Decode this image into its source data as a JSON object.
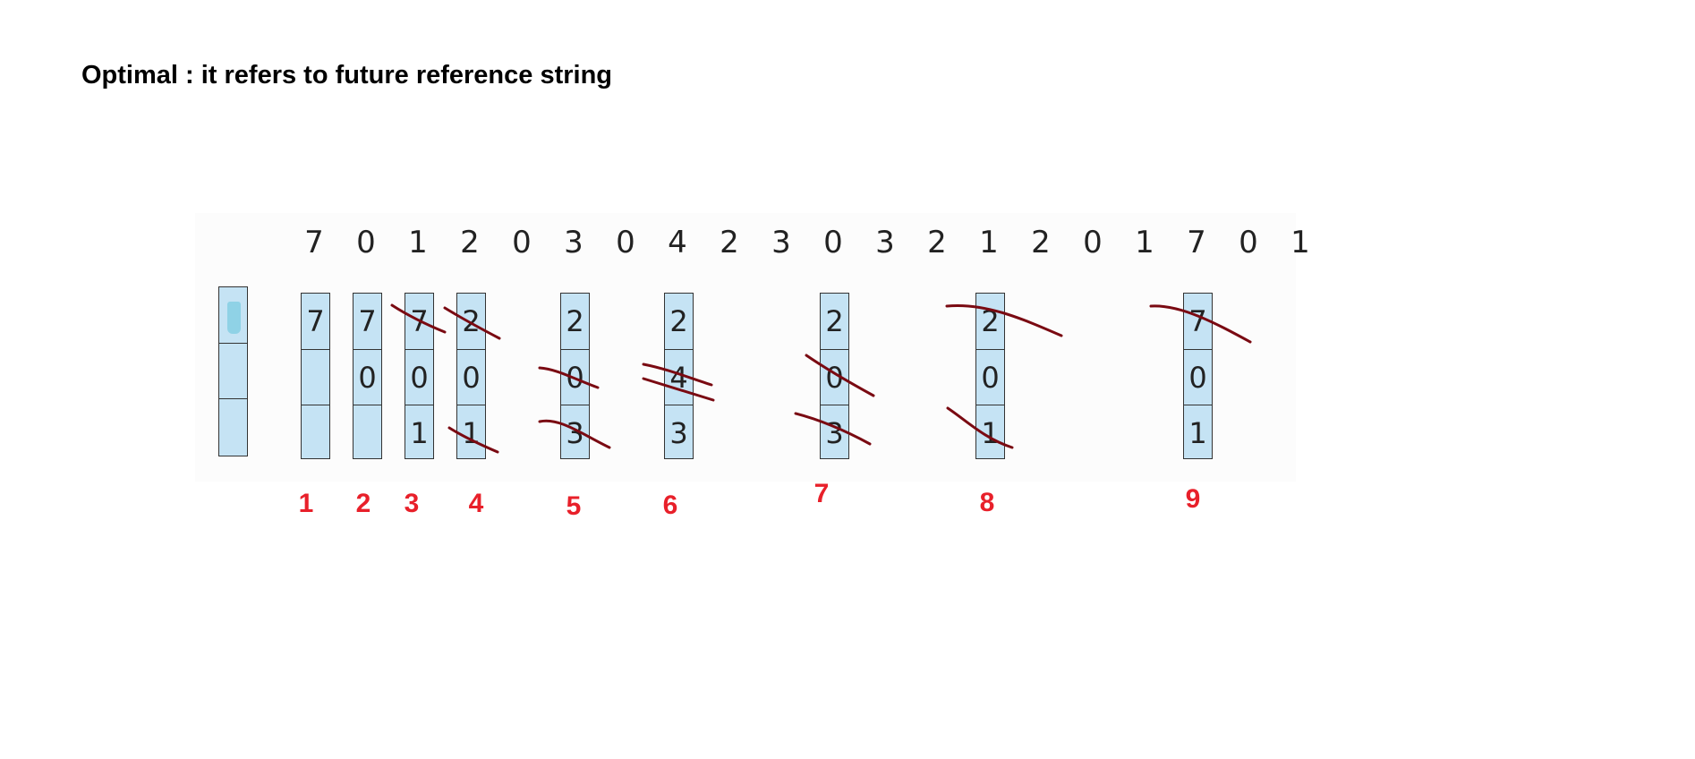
{
  "title": "Optimal : it refers to future reference string",
  "reference_string": [
    "7",
    "0",
    "1",
    "2",
    "0",
    "3",
    "0",
    "4",
    "2",
    "3",
    "0",
    "3",
    "2",
    "1",
    "2",
    "0",
    "1",
    "7",
    "0",
    "1"
  ],
  "frames": [
    [
      "7",
      "",
      ""
    ],
    [
      "7",
      "0",
      ""
    ],
    [
      "7",
      "0",
      "1"
    ],
    [
      "2",
      "0",
      "1"
    ],
    [
      "2",
      "0",
      "3"
    ],
    [
      "2",
      "4",
      "3"
    ],
    [
      "2",
      "0",
      "3"
    ],
    [
      "2",
      "0",
      "1"
    ],
    [
      "7",
      "0",
      "1"
    ]
  ],
  "fault_numbers": [
    "1",
    "2",
    "3",
    "4",
    "5",
    "6",
    "7",
    "8",
    "9"
  ],
  "colors": {
    "frame_fill": "#c5e3f4",
    "fault_label": "#e8202a",
    "strike": "#7a0a12"
  }
}
